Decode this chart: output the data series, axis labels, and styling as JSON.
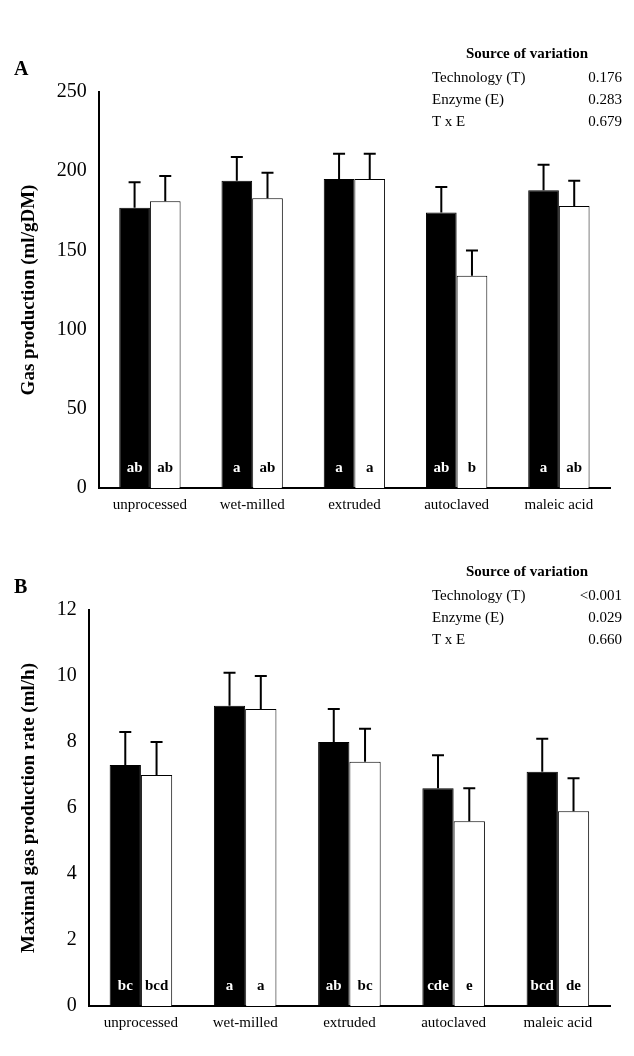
{
  "chart_data": [
    {
      "type": "bar",
      "title": "A",
      "ylabel": "Gas production (ml/gDM)",
      "categories": [
        "unprocessed",
        "wet-milled",
        "extruded",
        "autoclaved",
        "maleic acid"
      ],
      "series": [
        {
          "color": "#000000",
          "values": [
            177,
            194,
            195,
            174,
            188
          ],
          "errors": [
            [
              177,
              193
            ],
            [
              194,
              209
            ],
            [
              195,
              211
            ],
            [
              174,
              190
            ],
            [
              188,
              204
            ]
          ],
          "value_labels": [
            "ab",
            "a",
            "a",
            "ab",
            "a"
          ]
        },
        {
          "color": "#ffffff",
          "values": [
            181,
            183,
            195,
            134,
            178
          ],
          "errors": [
            [
              181,
              197
            ],
            [
              183,
              199
            ],
            [
              195,
              211
            ],
            [
              134,
              150
            ],
            [
              178,
              194
            ]
          ],
          "value_labels": [
            "ab",
            "ab",
            "a",
            "b",
            "ab"
          ]
        }
      ],
      "ylim": [
        0,
        250
      ],
      "yticks": [
        0,
        50,
        100,
        150,
        200,
        250
      ],
      "grid": false,
      "annotations": [
        "Source of variation",
        "Technology (T)",
        "0.176",
        "Enzyme (E)",
        "0.283",
        "T x E",
        "0.679"
      ]
    },
    {
      "type": "bar",
      "title": "B",
      "ylabel": "Maximal gas production rate (ml/h)",
      "categories": [
        "unprocessed",
        "wet-milled",
        "extruded",
        "autoclaved",
        "maleic acid"
      ],
      "series": [
        {
          "color": "#000000",
          "values": [
            7.3,
            9.1,
            8.0,
            6.6,
            7.1
          ],
          "errors": [
            [
              7.3,
              8.3
            ],
            [
              9.1,
              10.1
            ],
            [
              8.0,
              9.0
            ],
            [
              6.6,
              7.6
            ],
            [
              7.1,
              8.1
            ]
          ],
          "value_labels": [
            "bc",
            "a",
            "ab",
            "cde",
            "bcd"
          ]
        },
        {
          "color": "#ffffff",
          "values": [
            7.0,
            9.0,
            7.4,
            5.6,
            5.9
          ],
          "errors": [
            [
              7.0,
              8.0
            ],
            [
              9.0,
              10.0
            ],
            [
              7.4,
              8.4
            ],
            [
              5.6,
              6.6
            ],
            [
              5.9,
              6.9
            ]
          ],
          "value_labels": [
            "bcd",
            "a",
            "bc",
            "e",
            "de"
          ]
        }
      ],
      "ylim": [
        0,
        12
      ],
      "yticks": [
        0,
        2,
        4,
        6,
        8,
        10,
        12
      ],
      "grid": false,
      "annotations": [
        "Source of variation",
        "Technology (T)",
        "<0.001",
        "Enzyme (E)",
        "0.029",
        "T x E",
        "0.660"
      ]
    }
  ]
}
